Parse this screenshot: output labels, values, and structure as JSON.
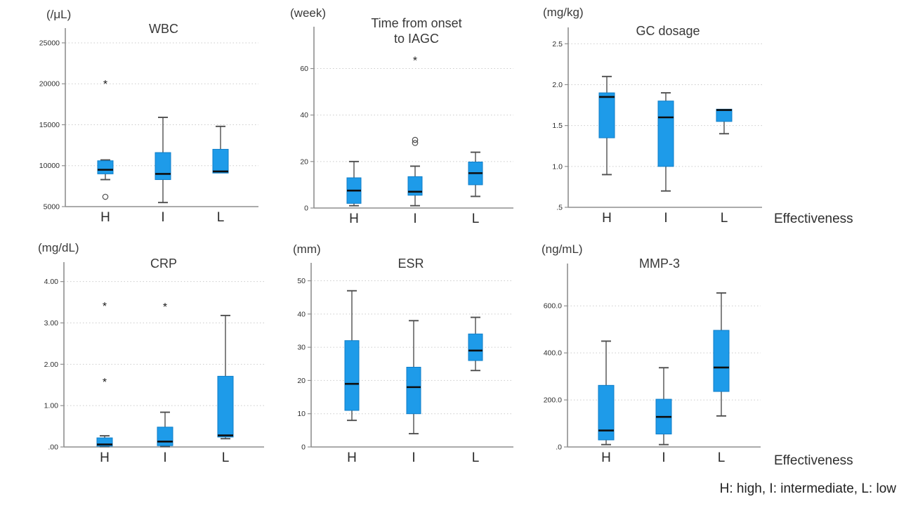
{
  "figure": {
    "effectiveness_label": "Effectiveness",
    "footnote": "H: high, I: intermediate, L: low"
  },
  "colors": {
    "box_fill": "#1E9BE9",
    "box_stroke": "#0F7EC8",
    "median": "#0E0E0E",
    "whisker": "#4F4F4F",
    "grid": "#CBCBCB",
    "axis": "#8F8F8F"
  },
  "chart_data": [
    {
      "type": "box",
      "title": "WBC",
      "unit": "(/μL)",
      "categories": [
        "H",
        "I",
        "L"
      ],
      "ylim": [
        5000,
        26800
      ],
      "yticks": [
        5000,
        10000,
        15000,
        20000,
        25000
      ],
      "ytick_labels": [
        "5000",
        "10000",
        "15000",
        "20000",
        "25000"
      ],
      "grid": "dotted",
      "boxes": [
        {
          "whislo": 8300,
          "q1": 9000,
          "med": 9500,
          "q3": 10600,
          "whishi": 10700,
          "outliers_circle": [
            6200
          ],
          "outliers_star": [
            20100
          ]
        },
        {
          "whislo": 5500,
          "q1": 8300,
          "med": 9000,
          "q3": 11600,
          "whishi": 15900,
          "outliers_circle": [],
          "outliers_star": []
        },
        {
          "whislo": 9100,
          "q1": 9100,
          "med": 9300,
          "q3": 12000,
          "whishi": 14800,
          "outliers_circle": [],
          "outliers_star": []
        }
      ]
    },
    {
      "type": "box",
      "title": "Time from onset\nto IAGC",
      "unit": "(week)",
      "categories": [
        "H",
        "I",
        "L"
      ],
      "ylim": [
        0,
        78
      ],
      "yticks": [
        0,
        20,
        40,
        60
      ],
      "ytick_labels": [
        "0",
        "20",
        "40",
        "60"
      ],
      "grid": "dotted",
      "boxes": [
        {
          "whislo": 1,
          "q1": 2,
          "med": 7.5,
          "q3": 13,
          "whishi": 20,
          "outliers_circle": [],
          "outliers_star": []
        },
        {
          "whislo": 1,
          "q1": 5.5,
          "med": 7,
          "q3": 13.5,
          "whishi": 18,
          "outliers_circle": [
            28,
            29.3
          ],
          "outliers_star": [
            64
          ]
        },
        {
          "whislo": 5,
          "q1": 10,
          "med": 15,
          "q3": 19.8,
          "whishi": 24,
          "outliers_circle": [],
          "outliers_star": []
        }
      ]
    },
    {
      "type": "box",
      "title": "GC dosage",
      "unit": "(mg/kg)",
      "categories": [
        "H",
        "I",
        "L"
      ],
      "ylim": [
        0.5,
        2.7
      ],
      "yticks": [
        0.5,
        1.0,
        1.5,
        2.0,
        2.5
      ],
      "ytick_labels": [
        ".5",
        "1.0",
        "1.5",
        "2.0",
        "2.5"
      ],
      "grid": "dotted",
      "boxes": [
        {
          "whislo": 0.9,
          "q1": 1.35,
          "med": 1.85,
          "q3": 1.9,
          "whishi": 2.1,
          "outliers_circle": [],
          "outliers_star": []
        },
        {
          "whislo": 0.7,
          "q1": 1.0,
          "med": 1.6,
          "q3": 1.8,
          "whishi": 1.9,
          "outliers_circle": [],
          "outliers_star": []
        },
        {
          "whislo": 1.4,
          "q1": 1.55,
          "med": 1.69,
          "q3": 1.7,
          "whishi": 1.7,
          "outliers_circle": [],
          "outliers_star": []
        }
      ]
    },
    {
      "type": "box",
      "title": "CRP",
      "unit": "(mg/dL)",
      "categories": [
        "H",
        "I",
        "L"
      ],
      "ylim": [
        0,
        4.47
      ],
      "yticks": [
        0,
        1.0,
        2.0,
        3.0,
        4.0
      ],
      "ytick_labels": [
        ".00",
        "1.00",
        "2.00",
        "3.00",
        "4.00"
      ],
      "grid": "dotted",
      "boxes": [
        {
          "whislo": 0.01,
          "q1": 0.02,
          "med": 0.06,
          "q3": 0.22,
          "whishi": 0.27,
          "outliers_circle": [],
          "outliers_star": [
            1.6,
            3.43
          ]
        },
        {
          "whislo": 0.01,
          "q1": 0.03,
          "med": 0.13,
          "q3": 0.48,
          "whishi": 0.84,
          "outliers_circle": [],
          "outliers_star": [
            3.42
          ]
        },
        {
          "whislo": 0.2,
          "q1": 0.24,
          "med": 0.28,
          "q3": 1.71,
          "whishi": 3.18,
          "outliers_circle": [],
          "outliers_star": []
        }
      ]
    },
    {
      "type": "box",
      "title": "ESR",
      "unit": "(mm)",
      "categories": [
        "H",
        "I",
        "L"
      ],
      "ylim": [
        0,
        55.4
      ],
      "yticks": [
        0,
        10,
        20,
        30,
        40,
        50
      ],
      "ytick_labels": [
        "0",
        "10",
        "20",
        "30",
        "40",
        "50"
      ],
      "grid": "dotted",
      "boxes": [
        {
          "whislo": 8,
          "q1": 11,
          "med": 19,
          "q3": 32,
          "whishi": 47,
          "outliers_circle": [],
          "outliers_star": []
        },
        {
          "whislo": 4,
          "q1": 10,
          "med": 18,
          "q3": 24,
          "whishi": 38,
          "outliers_circle": [],
          "outliers_star": []
        },
        {
          "whislo": 23,
          "q1": 26,
          "med": 29,
          "q3": 34,
          "whishi": 39,
          "outliers_circle": [],
          "outliers_star": []
        }
      ]
    },
    {
      "type": "box",
      "title": "MMP-3",
      "unit": "(ng/mL)",
      "categories": [
        "H",
        "I",
        "L"
      ],
      "ylim": [
        0,
        780
      ],
      "yticks": [
        0,
        200,
        400,
        600
      ],
      "ytick_labels": [
        ".0",
        "200.0",
        "400.0",
        "600.0"
      ],
      "grid": "dotted",
      "boxes": [
        {
          "whislo": 10,
          "q1": 30,
          "med": 70,
          "q3": 262,
          "whishi": 450,
          "outliers_circle": [],
          "outliers_star": []
        },
        {
          "whislo": 10,
          "q1": 55,
          "med": 128,
          "q3": 203,
          "whishi": 337,
          "outliers_circle": [],
          "outliers_star": []
        },
        {
          "whislo": 132,
          "q1": 236,
          "med": 338,
          "q3": 496,
          "whishi": 655,
          "outliers_circle": [],
          "outliers_star": []
        }
      ]
    }
  ]
}
